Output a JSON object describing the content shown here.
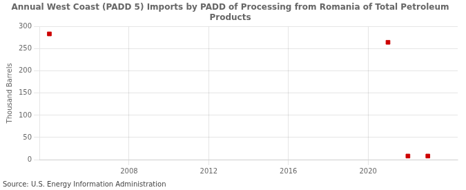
{
  "chart_data": {
    "type": "scatter",
    "title": "Annual West Coast (PADD 5) Imports by PADD of Processing from Romania of Total Petroleum\nProducts",
    "ylabel": "Thousand Barrels",
    "annotations": [
      "Source: U.S. Energy Information Administration"
    ],
    "x": [
      2004,
      2021,
      2022,
      2023
    ],
    "values": [
      284,
      265,
      8,
      8
    ],
    "color": "#cc0000",
    "marker": "square",
    "xlim": [
      2003.5,
      2024.5
    ],
    "ylim": [
      0,
      300
    ],
    "xticks": [
      2008,
      2012,
      2016,
      2020
    ],
    "yticks": [
      0,
      50,
      100,
      150,
      200,
      250,
      300
    ],
    "grid": true
  }
}
